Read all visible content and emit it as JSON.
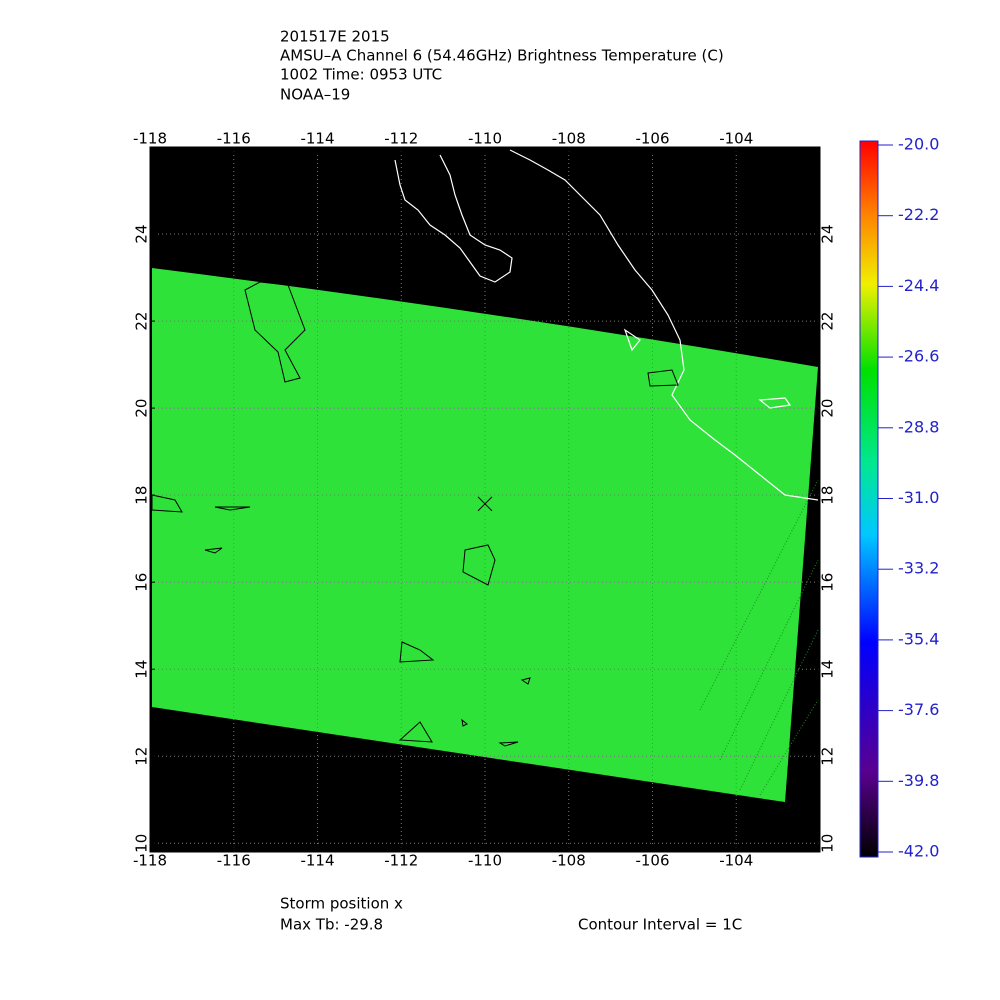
{
  "map": {
    "header": [
      "201517E 2015",
      "AMSU–A Channel 6 (54.46GHz) Brightness Temperature (C)",
      "1002 Time: 0953 UTC",
      "NOAA–19"
    ],
    "xlim": [
      -118,
      -102
    ],
    "ylim": [
      9.8,
      26
    ],
    "xticks": [
      -118,
      -116,
      -114,
      -112,
      -110,
      -108,
      -106,
      -104
    ],
    "yticks": [
      10,
      12,
      14,
      16,
      18,
      20,
      22,
      24
    ],
    "grid": true,
    "storm": {
      "lon": -110,
      "lat": 17.8
    },
    "colorbar": {
      "lim": [
        -42,
        -20
      ],
      "ticks": [
        {
          "value": -20,
          "label": "-20.0"
        },
        {
          "value": -22.2,
          "label": "-22.2"
        },
        {
          "value": -24.4,
          "label": "-24.4"
        },
        {
          "value": -26.6,
          "label": "-26.6"
        },
        {
          "value": -28.8,
          "label": "-28.8"
        },
        {
          "value": -31,
          "label": "-31.0"
        },
        {
          "value": -33.2,
          "label": "-33.2"
        },
        {
          "value": -35.4,
          "label": "-35.4"
        },
        {
          "value": -37.6,
          "label": "-37.6"
        },
        {
          "value": -39.8,
          "label": "-39.8"
        },
        {
          "value": -42,
          "label": "-42.0"
        }
      ]
    },
    "footer": {
      "storm_position": "Storm position x",
      "max_tb": "Max Tb: -29.8",
      "contour_interval": "Contour Interval = 1C"
    }
  }
}
